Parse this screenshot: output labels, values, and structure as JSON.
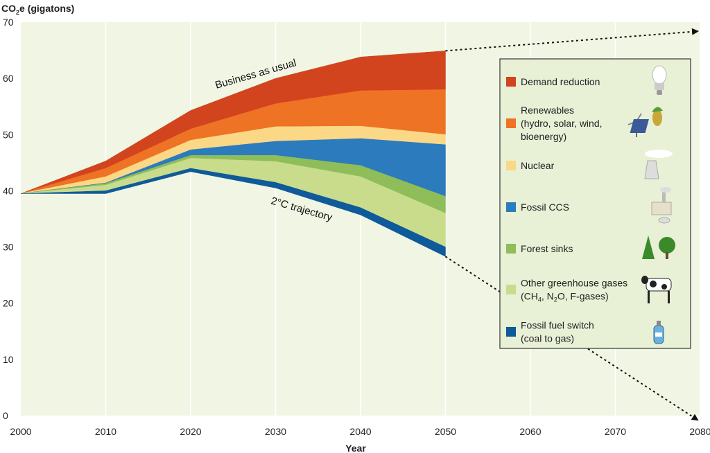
{
  "chart_data": {
    "type": "area",
    "title": "",
    "ylabel_prefix": "CO",
    "ylabel_sub": "2",
    "ylabel_suffix": "e (gigatons)",
    "xlabel": "Year",
    "xlim": [
      2000,
      2080
    ],
    "ylim": [
      0,
      70
    ],
    "x_ticks": [
      2000,
      2010,
      2020,
      2030,
      2040,
      2050,
      2060,
      2070,
      2080
    ],
    "y_ticks": [
      0,
      10,
      20,
      30,
      40,
      50,
      60,
      70
    ],
    "x": [
      2000,
      2010,
      2020,
      2030,
      2040,
      2050
    ],
    "boundaries": [
      [
        39.5,
        45.3,
        54.3,
        60.0,
        63.8,
        64.9
      ],
      [
        39.5,
        44.0,
        51.0,
        55.5,
        57.8,
        58.0
      ],
      [
        39.5,
        42.5,
        49.0,
        51.4,
        51.5,
        50.0
      ],
      [
        39.5,
        41.4,
        47.3,
        48.8,
        49.3,
        48.2
      ],
      [
        39.5,
        41.3,
        46.3,
        46.3,
        44.5,
        39.0
      ],
      [
        39.5,
        41.0,
        45.8,
        45.2,
        42.5,
        36.0
      ],
      [
        39.5,
        40.0,
        44.0,
        41.5,
        37.0,
        30.0
      ],
      [
        39.5,
        39.5,
        43.4,
        40.5,
        35.7,
        28.3
      ]
    ],
    "series": [
      {
        "name": "Demand reduction",
        "color": "#d2441e",
        "icon": "lightbulb-icon"
      },
      {
        "name": "Renewables (hydro, solar, wind, bioenergy)",
        "color": "#ee7324",
        "icon": "renewables-icon"
      },
      {
        "name": "Nuclear",
        "color": "#fbd886",
        "icon": "nuclear-plant-icon"
      },
      {
        "name": "Fossil CCS",
        "color": "#2b7bbd",
        "icon": "factory-icon"
      },
      {
        "name": "Forest sinks",
        "color": "#8fbd5a",
        "icon": "trees-icon"
      },
      {
        "name": "Other greenhouse gases (CH4, N2O, F-gases)",
        "color": "#c9dc8c",
        "icon": "cow-icon"
      },
      {
        "name": "Fossil fuel switch (coal to gas)",
        "color": "#0e5a9a",
        "icon": "gas-cylinder-icon"
      }
    ],
    "legend_labels": [
      [
        "Demand reduction"
      ],
      [
        "Renewables",
        "(hydro, solar, wind,",
        "bioenergy)"
      ],
      [
        "Nuclear"
      ],
      [
        "Fossil CCS"
      ],
      [
        "Forest sinks"
      ],
      [
        "Other greenhouse gases",
        "(CH4, N2O, F-gases)"
      ],
      [
        "Fossil fuel switch",
        "(coal to gas)"
      ]
    ],
    "projection_lines": [
      {
        "from": [
          2050,
          64.9
        ],
        "to": [
          2080,
          68.5
        ]
      },
      {
        "from": [
          2050,
          28.3
        ],
        "to": [
          2080,
          -1.0
        ]
      }
    ],
    "annotations": [
      {
        "text": "Business as usual"
      },
      {
        "text": "2°C trajectory"
      }
    ],
    "background_color": "#f1f6e4",
    "legend_background": "#e8f0d6"
  }
}
